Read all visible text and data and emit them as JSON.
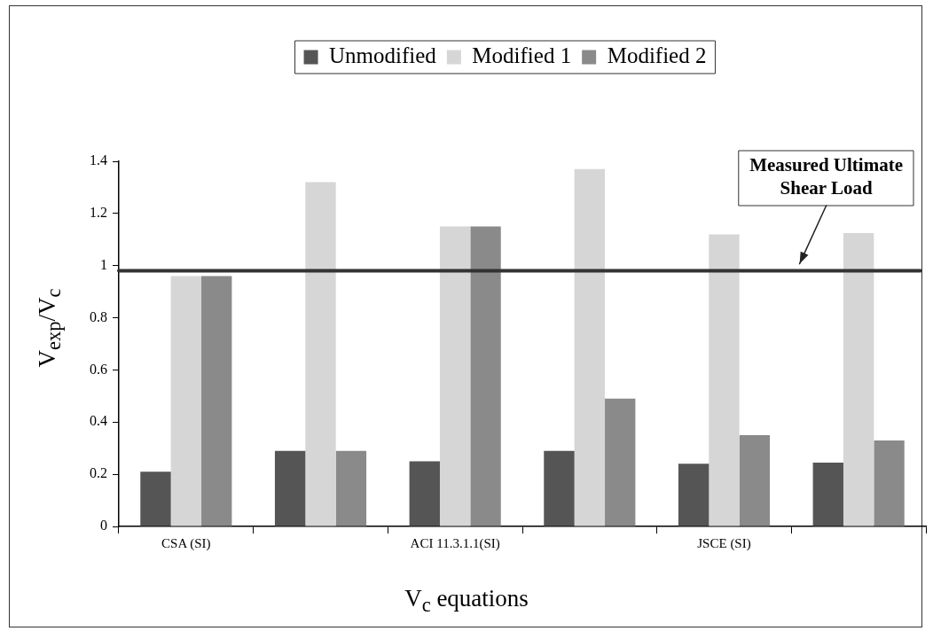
{
  "chart_data": {
    "type": "bar",
    "xlabel": "V$_{c}$ equations",
    "ylabel": "V$_{exp}$/V$_{c}$",
    "categories": [
      "CSA (SI)",
      null,
      "ACI 11.3.1.1(SI)",
      null,
      "JSCE (SI)",
      null
    ],
    "series": [
      {
        "name": "Unmodified",
        "color": "#555555",
        "values": [
          0.21,
          0.29,
          0.25,
          0.29,
          0.24,
          0.245
        ]
      },
      {
        "name": "Modified 1",
        "color": "#d6d6d6",
        "values": [
          0.96,
          1.32,
          1.15,
          1.37,
          1.12,
          1.125
        ]
      },
      {
        "name": "Modified 2",
        "color": "#8a8a8a",
        "values": [
          0.96,
          0.29,
          1.15,
          0.49,
          0.35,
          0.33
        ]
      }
    ],
    "ylim": [
      0,
      1.4
    ],
    "yticks": [
      0,
      0.2,
      0.4,
      0.6,
      0.8,
      1,
      1.2,
      1.4
    ],
    "grid": false,
    "legend": "top",
    "ref_lines": [
      {
        "axis": "y",
        "value": 0.98,
        "label": "Measured Ultimate Shear Load",
        "color": "#333333"
      }
    ]
  }
}
